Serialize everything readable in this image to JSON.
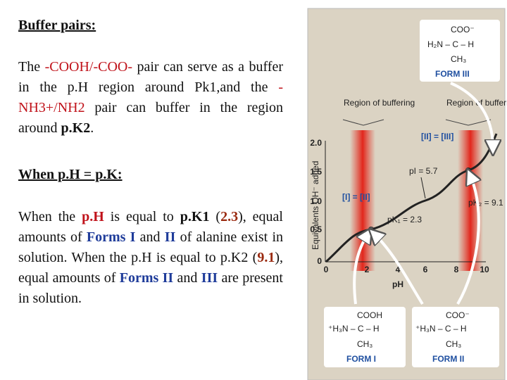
{
  "heading": "Buffer pairs:",
  "paragraph1": [
    " The ",
    "-COOH/-COO-",
    " pair can serve as a buffer in the p.H region around Pk1,and the ",
    "-NH3+/NH2",
    " pair can buffer in the region around ",
    "p.K2",
    "."
  ],
  "heading2": "When p.H = p.K:",
  "paragraph2": [
    "When the ",
    "p.H",
    " is equal to ",
    "p.K1",
    " (",
    "2.3",
    "), equal amounts of ",
    "Forms  I",
    " and ",
    "II",
    " of alanine exist in solution. When the p.H is equal to p.K2 (",
    "9.1",
    "),  equal amounts of ",
    "Forms II",
    " and ",
    "III",
    " are present in solution."
  ],
  "figure": {
    "form3": {
      "top": "COO⁻",
      "middle": "H₂N – C – H",
      "bottom": "CH₃",
      "label": "FORM III"
    },
    "regions": [
      "Region of buffering",
      "Region of buffering"
    ],
    "ylabel": "Equivalents OH⁻ added",
    "yticks": [
      "0",
      "0.5",
      "1.0",
      "1.5",
      "2.0"
    ],
    "xticks": [
      "0",
      "2",
      "4",
      "6",
      "8",
      "10"
    ],
    "xlabel": "pH",
    "annotations": [
      "[II] = [III]",
      "pI = 5.7",
      "pK₂ = 9.1",
      "[I] = [II]",
      "pK₁ = 2.3"
    ],
    "form1": {
      "top": "COOH",
      "middle": "⁺H₃N – C – H",
      "bottom": "CH₃",
      "label": "FORM I"
    },
    "form2": {
      "top": "COO⁻",
      "middle": "⁺H₃N – C – H",
      "bottom": "CH₃",
      "label": "FORM II"
    }
  }
}
